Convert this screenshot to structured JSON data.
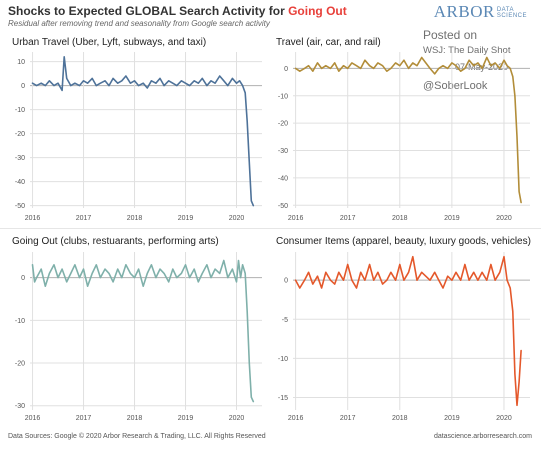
{
  "header": {
    "title_prefix": "Shocks to Expected GLOBAL Search Activity for ",
    "title_highlight": "Going Out",
    "subtitle": "Residual after removing trend and seasonality from Google search activity",
    "logo_main": "ARBOR",
    "logo_small_line1": "DATA",
    "logo_small_line2": "SCIENCE"
  },
  "watermark": {
    "line1": "Posted on",
    "line2": "WSJ: The Daily Shot",
    "line3": "07-May-2020",
    "line4": "@SoberLook"
  },
  "footer": {
    "left": "Data Sources: Google © 2020 Arbor Research & Trading, LLC. All Rights Reserved",
    "right": "datascience.arborresearch.com"
  },
  "colors": {
    "urban": "#4e7299",
    "travel": "#b28d39",
    "going_out": "#7fb0aa",
    "consumer": "#e4582b",
    "title_highlight": "#e8403a",
    "gridline": "#e0e0e0",
    "zero_line": "#b0b0b0"
  },
  "chart_data": [
    {
      "type": "line",
      "title": "Urban Travel (Uber, Lyft, subways, and taxi)",
      "x_ticks": [
        "2016",
        "2017",
        "2018",
        "2019",
        "2020"
      ],
      "y_ticks": [
        10,
        0,
        -10,
        -20,
        -30,
        -40,
        -50
      ],
      "ylim": [
        -51,
        14
      ],
      "xlim": [
        2015.95,
        2020.5
      ],
      "grid": true,
      "series": [
        {
          "x": [
            2016.0,
            2016.08,
            2016.17,
            2016.25,
            2016.33,
            2016.42,
            2016.5,
            2016.58,
            2016.62,
            2016.67,
            2016.75,
            2016.83,
            2016.92,
            2017.0,
            2017.08,
            2017.17,
            2017.25,
            2017.33,
            2017.42,
            2017.5,
            2017.58,
            2017.67,
            2017.75,
            2017.83,
            2017.92,
            2018.0,
            2018.08,
            2018.17,
            2018.25,
            2018.33,
            2018.42,
            2018.5,
            2018.58,
            2018.67,
            2018.75,
            2018.83,
            2018.92,
            2019.0,
            2019.08,
            2019.17,
            2019.25,
            2019.33,
            2019.42,
            2019.5,
            2019.58,
            2019.67,
            2019.75,
            2019.83,
            2019.92,
            2020.0,
            2020.06,
            2020.12,
            2020.17,
            2020.21,
            2020.25,
            2020.29,
            2020.33
          ],
          "values": [
            1,
            0,
            1,
            0,
            2,
            0,
            1,
            -2,
            12,
            3,
            0,
            1,
            0,
            2,
            1,
            3,
            0,
            1,
            2,
            0,
            3,
            1,
            2,
            4,
            1,
            2,
            0,
            1,
            -1,
            2,
            1,
            3,
            0,
            2,
            1,
            0,
            2,
            1,
            0,
            2,
            1,
            3,
            0,
            2,
            1,
            4,
            2,
            0,
            3,
            1,
            2,
            0,
            -3,
            -15,
            -32,
            -48,
            -50
          ]
        }
      ]
    },
    {
      "type": "line",
      "title": "Travel (air, car, and rail)",
      "x_ticks": [
        "2016",
        "2017",
        "2018",
        "2019",
        "2020"
      ],
      "y_ticks": [
        0,
        -10,
        -20,
        -30,
        -40,
        -50
      ],
      "ylim": [
        -51,
        6
      ],
      "xlim": [
        2015.95,
        2020.5
      ],
      "grid": true,
      "series": [
        {
          "x": [
            2016.0,
            2016.08,
            2016.17,
            2016.25,
            2016.33,
            2016.42,
            2016.5,
            2016.58,
            2016.67,
            2016.75,
            2016.83,
            2016.92,
            2017.0,
            2017.08,
            2017.17,
            2017.25,
            2017.33,
            2017.42,
            2017.5,
            2017.58,
            2017.67,
            2017.75,
            2017.83,
            2017.92,
            2018.0,
            2018.08,
            2018.17,
            2018.25,
            2018.33,
            2018.42,
            2018.5,
            2018.58,
            2018.67,
            2018.75,
            2018.83,
            2018.92,
            2019.0,
            2019.08,
            2019.17,
            2019.25,
            2019.33,
            2019.42,
            2019.5,
            2019.58,
            2019.67,
            2019.75,
            2019.83,
            2019.92,
            2020.0,
            2020.06,
            2020.12,
            2020.17,
            2020.21,
            2020.25,
            2020.29,
            2020.33
          ],
          "values": [
            0,
            -1,
            0,
            1,
            -1,
            2,
            0,
            1,
            0,
            2,
            -1,
            1,
            0,
            2,
            1,
            0,
            3,
            1,
            0,
            2,
            1,
            -1,
            0,
            2,
            1,
            3,
            0,
            2,
            1,
            4,
            2,
            0,
            -2,
            0,
            1,
            0,
            2,
            1,
            -1,
            0,
            3,
            1,
            2,
            0,
            4,
            1,
            2,
            0,
            3,
            1,
            0,
            -3,
            -10,
            -25,
            -45,
            -49
          ]
        }
      ]
    },
    {
      "type": "line",
      "title": "Going Out (clubs, restuarants, performing arts)",
      "x_ticks": [
        "2016",
        "2017",
        "2018",
        "2019",
        "2020"
      ],
      "y_ticks": [
        0,
        -10,
        -20,
        -30
      ],
      "ylim": [
        -31,
        6
      ],
      "xlim": [
        2015.95,
        2020.5
      ],
      "grid": true,
      "series": [
        {
          "x": [
            2016.0,
            2016.04,
            2016.08,
            2016.17,
            2016.25,
            2016.33,
            2016.42,
            2016.5,
            2016.58,
            2016.67,
            2016.75,
            2016.83,
            2016.92,
            2017.0,
            2017.08,
            2017.17,
            2017.25,
            2017.33,
            2017.42,
            2017.5,
            2017.58,
            2017.67,
            2017.75,
            2017.83,
            2017.92,
            2018.0,
            2018.08,
            2018.17,
            2018.25,
            2018.33,
            2018.42,
            2018.5,
            2018.58,
            2018.67,
            2018.75,
            2018.83,
            2018.92,
            2019.0,
            2019.08,
            2019.17,
            2019.25,
            2019.33,
            2019.42,
            2019.5,
            2019.58,
            2019.67,
            2019.75,
            2019.83,
            2019.92,
            2020.0,
            2020.04,
            2020.08,
            2020.12,
            2020.17,
            2020.21,
            2020.25,
            2020.29,
            2020.33
          ],
          "values": [
            3,
            -1,
            0,
            2,
            -2,
            1,
            3,
            0,
            2,
            -1,
            1,
            3,
            0,
            2,
            -2,
            1,
            3,
            0,
            2,
            1,
            -1,
            2,
            0,
            3,
            1,
            0,
            2,
            -2,
            1,
            3,
            0,
            2,
            1,
            -1,
            2,
            0,
            1,
            3,
            0,
            2,
            -1,
            1,
            3,
            0,
            2,
            1,
            4,
            0,
            2,
            -1,
            4,
            0,
            3,
            1,
            -8,
            -20,
            -28,
            -29
          ]
        }
      ]
    },
    {
      "type": "line",
      "title": "Consumer Items (apparel, beauty, luxury goods, vehicles)",
      "x_ticks": [
        "2016",
        "2017",
        "2018",
        "2019",
        "2020"
      ],
      "y_ticks": [
        0,
        -5,
        -10,
        -15
      ],
      "ylim": [
        -16.6,
        3.6
      ],
      "xlim": [
        2015.95,
        2020.5
      ],
      "grid": true,
      "series": [
        {
          "x": [
            2016.0,
            2016.08,
            2016.17,
            2016.25,
            2016.33,
            2016.42,
            2016.5,
            2016.58,
            2016.67,
            2016.75,
            2016.83,
            2016.92,
            2017.0,
            2017.08,
            2017.17,
            2017.25,
            2017.33,
            2017.42,
            2017.5,
            2017.58,
            2017.67,
            2017.75,
            2017.83,
            2017.92,
            2018.0,
            2018.08,
            2018.17,
            2018.25,
            2018.33,
            2018.42,
            2018.5,
            2018.58,
            2018.67,
            2018.75,
            2018.83,
            2018.92,
            2019.0,
            2019.08,
            2019.17,
            2019.25,
            2019.33,
            2019.42,
            2019.5,
            2019.58,
            2019.67,
            2019.75,
            2019.83,
            2019.92,
            2020.0,
            2020.06,
            2020.12,
            2020.17,
            2020.21,
            2020.25,
            2020.29,
            2020.33
          ],
          "values": [
            0,
            -1,
            0,
            1,
            -0.5,
            0.5,
            -1,
            1,
            0,
            -0.5,
            1,
            0,
            2,
            0,
            -1,
            1,
            0,
            2,
            0,
            1,
            -0.5,
            0,
            1,
            0,
            2,
            0,
            1,
            3,
            0,
            1,
            0.5,
            0,
            1,
            0,
            -1,
            0.5,
            0,
            1,
            0,
            2,
            0,
            1,
            0,
            1,
            0,
            2,
            0,
            1,
            3,
            0,
            -1,
            -4,
            -12,
            -16,
            -13,
            -9
          ]
        }
      ]
    }
  ]
}
